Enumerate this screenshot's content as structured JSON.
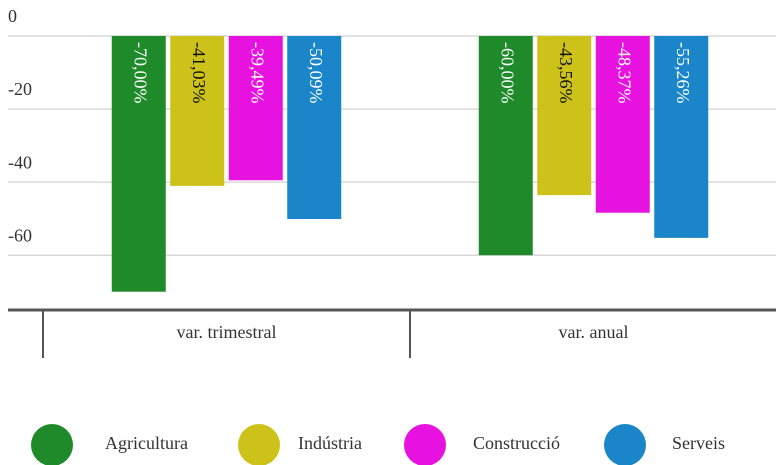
{
  "chart_data": {
    "type": "bar",
    "categories": [
      "var. trimestral",
      "var. anual"
    ],
    "series": [
      {
        "name": "Agricultura",
        "color": "#1e8a2a",
        "values": [
          -70.0,
          -60.0
        ],
        "value_labels": [
          "-70,00%",
          "-60,00%"
        ]
      },
      {
        "name": "Indústria",
        "color": "#ccc21a",
        "values": [
          -41.03,
          -43.56
        ],
        "value_labels": [
          "-41,03%",
          "-43,56%"
        ]
      },
      {
        "name": "Construcció",
        "color": "#e812e0",
        "values": [
          -39.49,
          -48.37
        ],
        "value_labels": [
          "-39,49%",
          "-48,37%"
        ]
      },
      {
        "name": "Serveis",
        "color": "#1a85c8",
        "values": [
          -50.09,
          -55.26
        ],
        "value_labels": [
          "-50,09%",
          "-55,26%"
        ]
      }
    ],
    "ylim": [
      -75,
      0
    ],
    "yticks": [
      0,
      -20,
      -40,
      -60
    ],
    "grid": true,
    "legend": "bottom"
  }
}
